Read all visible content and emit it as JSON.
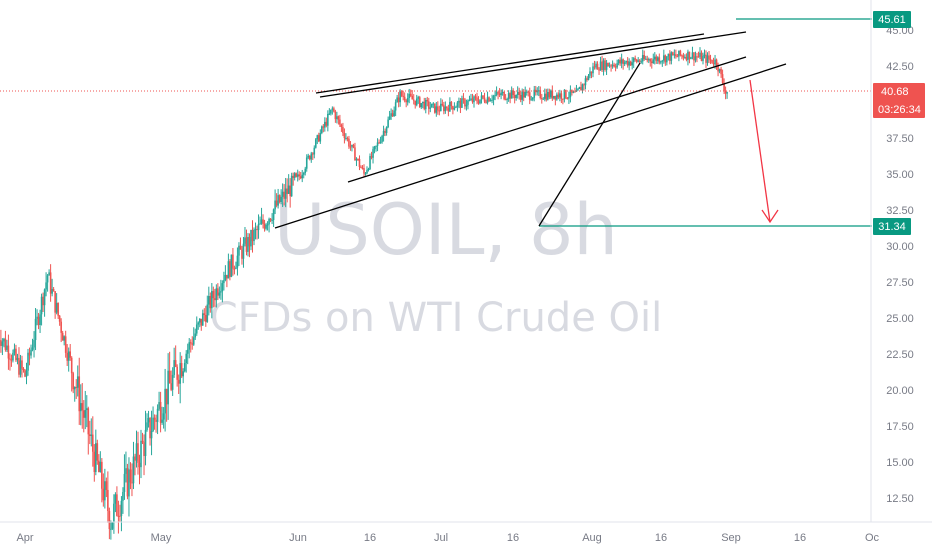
{
  "colors": {
    "up": "#26a69a",
    "down": "#ef5350",
    "teal_line": "#089981",
    "trend_line": "#000000",
    "arrow": "#f23645",
    "axis_text": "#787b86",
    "watermark": "#d1d4dc"
  },
  "watermark": {
    "symbol": "USOIL, 8h",
    "description": "CFDs on WTI Crude Oil"
  },
  "chart_data": {
    "type": "candlestick",
    "symbol": "USOIL",
    "interval": "8h",
    "title": "",
    "y_axis_ticks": [
      "45.00",
      "42.50",
      "37.50",
      "35.00",
      "32.50",
      "30.00",
      "27.50",
      "25.00",
      "22.50",
      "20.00",
      "17.50",
      "15.00",
      "12.50"
    ],
    "x_axis_ticks": [
      "Apr",
      "May",
      "Jun",
      "16",
      "Jul",
      "16",
      "Aug",
      "16",
      "Sep",
      "16",
      "Oc"
    ],
    "ylim": [
      10.3,
      47.2
    ],
    "price_labels": {
      "target_high": "45.61",
      "current_price": "40.68",
      "countdown": "03:26:34",
      "target_low": "31.34"
    },
    "price_levels": {
      "target_high": 45.61,
      "current_price": 40.68,
      "target_low": 31.34
    },
    "key_closes": [
      {
        "date": "Apr 1",
        "price": 21.0
      },
      {
        "date": "Apr 6",
        "price": 28.0
      },
      {
        "date": "Apr 20",
        "price": 11.0
      },
      {
        "date": "May 1",
        "price": 19.0
      },
      {
        "date": "May 15",
        "price": 28.0
      },
      {
        "date": "Jun 1",
        "price": 35.0
      },
      {
        "date": "Jun 8",
        "price": 39.5
      },
      {
        "date": "Jun 15",
        "price": 35.0
      },
      {
        "date": "Jun 23",
        "price": 40.5
      },
      {
        "date": "Jul 1",
        "price": 39.5
      },
      {
        "date": "Jul 15",
        "price": 40.5
      },
      {
        "date": "Aug 1",
        "price": 40.5
      },
      {
        "date": "Aug 5",
        "price": 42.5
      },
      {
        "date": "Aug 26",
        "price": 43.3
      },
      {
        "date": "Sep 1",
        "price": 42.8
      },
      {
        "date": "Sep 3",
        "price": 40.7
      }
    ]
  }
}
